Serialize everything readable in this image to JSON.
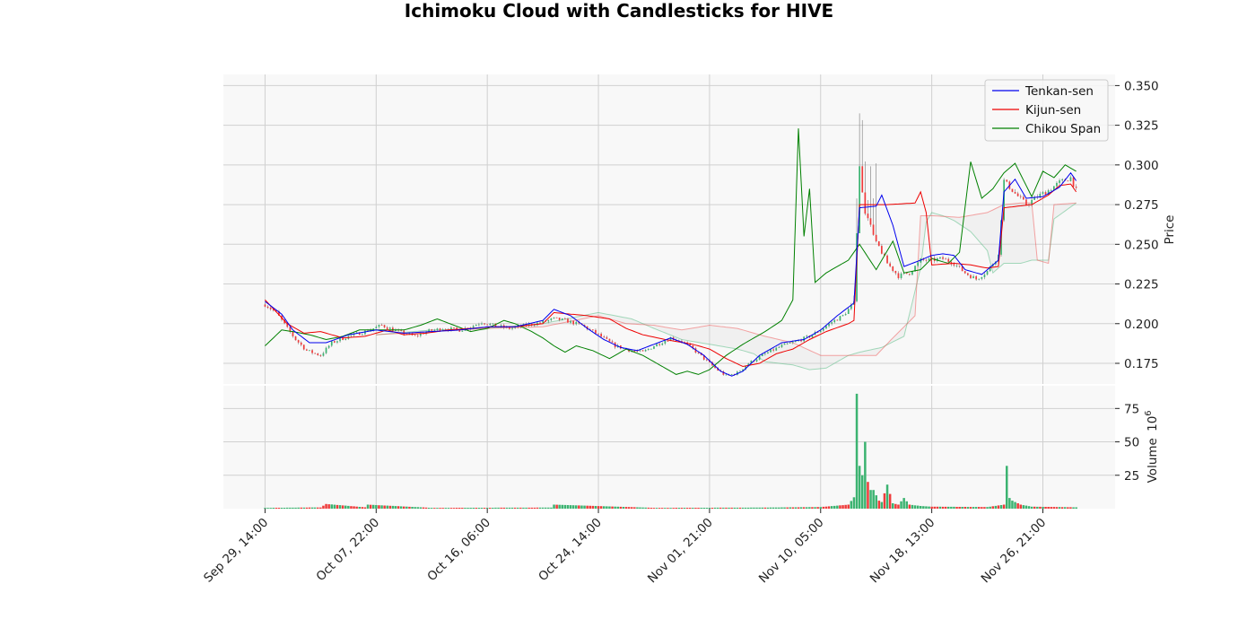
{
  "chart_data": {
    "type": "line",
    "title": "Ichimoku Cloud with Candlesticks for HIVE",
    "price_panel": {
      "ylabel": "Price",
      "ylim": [
        0.162,
        0.357
      ],
      "yticks": [
        0.175,
        0.2,
        0.225,
        0.25,
        0.275,
        0.3,
        0.325,
        0.35
      ],
      "ytick_labels": [
        "0.175",
        "0.200",
        "0.225",
        "0.250",
        "0.275",
        "0.300",
        "0.325",
        "0.350"
      ]
    },
    "volume_panel": {
      "ylabel": "Volume",
      "ylabel_exponent": "10",
      "ylabel_exponent_power": "6",
      "ylim": [
        0,
        92
      ],
      "yticks": [
        25,
        50,
        75
      ],
      "ytick_labels": [
        "25",
        "50",
        "75"
      ]
    },
    "x_axis": {
      "xlim": [
        -15,
        306
      ],
      "tick_positions": [
        0,
        40,
        80,
        120,
        160,
        200,
        240,
        280
      ],
      "tick_labels": [
        "Sep 29, 14:00",
        "Oct 07, 22:00",
        "Oct 16, 06:00",
        "Oct 24, 14:00",
        "Nov 01, 21:00",
        "Nov 10, 05:00",
        "Nov 18, 13:00",
        "Nov 26, 21:00"
      ],
      "grid": true
    },
    "legend": {
      "placement": "top-right",
      "entries": [
        {
          "label": "Tenkan-sen",
          "color": "#0000ee"
        },
        {
          "label": "Kijun-sen",
          "color": "#ee0000"
        },
        {
          "label": "Chikou Span",
          "color": "#008000"
        }
      ]
    },
    "colors": {
      "up": "#3cb371",
      "down": "#ef3b3b",
      "senkou_a": "#3cb371",
      "senkou_b": "#ef3b3b",
      "panel_bg": "#f8f8f8",
      "grid": "#d0d0d0"
    },
    "price_anchors": [
      [
        0,
        0.212
      ],
      [
        4,
        0.207
      ],
      [
        8,
        0.197
      ],
      [
        11,
        0.19
      ],
      [
        15,
        0.183
      ],
      [
        20,
        0.18
      ],
      [
        24,
        0.188
      ],
      [
        30,
        0.192
      ],
      [
        36,
        0.195
      ],
      [
        42,
        0.199
      ],
      [
        48,
        0.195
      ],
      [
        54,
        0.192
      ],
      [
        58,
        0.195
      ],
      [
        64,
        0.197
      ],
      [
        70,
        0.196
      ],
      [
        74,
        0.198
      ],
      [
        78,
        0.201
      ],
      [
        82,
        0.199
      ],
      [
        88,
        0.197
      ],
      [
        94,
        0.199
      ],
      [
        100,
        0.201
      ],
      [
        104,
        0.203
      ],
      [
        108,
        0.202
      ],
      [
        114,
        0.199
      ],
      [
        120,
        0.193
      ],
      [
        126,
        0.186
      ],
      [
        132,
        0.183
      ],
      [
        136,
        0.182
      ],
      [
        140,
        0.186
      ],
      [
        146,
        0.191
      ],
      [
        150,
        0.189
      ],
      [
        154,
        0.184
      ],
      [
        158,
        0.178
      ],
      [
        162,
        0.172
      ],
      [
        166,
        0.167
      ],
      [
        170,
        0.169
      ],
      [
        174,
        0.175
      ],
      [
        180,
        0.181
      ],
      [
        186,
        0.186
      ],
      [
        190,
        0.188
      ],
      [
        196,
        0.192
      ],
      [
        200,
        0.196
      ],
      [
        204,
        0.201
      ],
      [
        208,
        0.205
      ],
      [
        212,
        0.213
      ],
      [
        214,
        0.298
      ],
      [
        216,
        0.27
      ],
      [
        218,
        0.262
      ],
      [
        220,
        0.252
      ],
      [
        224,
        0.238
      ],
      [
        228,
        0.23
      ],
      [
        232,
        0.232
      ],
      [
        236,
        0.24
      ],
      [
        240,
        0.24
      ],
      [
        244,
        0.241
      ],
      [
        248,
        0.238
      ],
      [
        252,
        0.232
      ],
      [
        256,
        0.228
      ],
      [
        260,
        0.233
      ],
      [
        264,
        0.243
      ],
      [
        266,
        0.29
      ],
      [
        270,
        0.282
      ],
      [
        274,
        0.275
      ],
      [
        278,
        0.28
      ],
      [
        282,
        0.284
      ],
      [
        286,
        0.289
      ],
      [
        290,
        0.292
      ],
      [
        292,
        0.284
      ]
    ],
    "volume_anchors": [
      [
        0,
        0.6
      ],
      [
        20,
        0.9
      ],
      [
        22,
        3.5
      ],
      [
        36,
        1.0
      ],
      [
        37,
        3.0
      ],
      [
        60,
        0.6
      ],
      [
        103,
        0.8
      ],
      [
        104,
        3.0
      ],
      [
        140,
        0.6
      ],
      [
        180,
        0.8
      ],
      [
        200,
        1.2
      ],
      [
        210,
        3.0
      ],
      [
        212,
        8.5
      ],
      [
        213,
        86
      ],
      [
        214,
        32
      ],
      [
        215,
        25
      ],
      [
        216,
        50
      ],
      [
        217,
        20
      ],
      [
        218,
        14
      ],
      [
        219,
        14
      ],
      [
        220,
        10
      ],
      [
        221,
        6
      ],
      [
        222,
        5
      ],
      [
        224,
        18
      ],
      [
        226,
        4
      ],
      [
        228,
        3
      ],
      [
        230,
        8
      ],
      [
        232,
        3
      ],
      [
        236,
        2
      ],
      [
        240,
        1.5
      ],
      [
        260,
        1.2
      ],
      [
        266,
        3.0
      ],
      [
        267,
        32
      ],
      [
        268,
        8
      ],
      [
        269,
        6
      ],
      [
        272,
        3
      ],
      [
        276,
        1.5
      ],
      [
        292,
        1.0
      ]
    ],
    "tenkan_anchors": [
      [
        0,
        0.214
      ],
      [
        6,
        0.206
      ],
      [
        10,
        0.196
      ],
      [
        16,
        0.188
      ],
      [
        22,
        0.188
      ],
      [
        30,
        0.193
      ],
      [
        40,
        0.196
      ],
      [
        50,
        0.194
      ],
      [
        60,
        0.195
      ],
      [
        70,
        0.196
      ],
      [
        80,
        0.198
      ],
      [
        90,
        0.198
      ],
      [
        100,
        0.202
      ],
      [
        104,
        0.209
      ],
      [
        110,
        0.205
      ],
      [
        116,
        0.197
      ],
      [
        122,
        0.19
      ],
      [
        128,
        0.185
      ],
      [
        134,
        0.183
      ],
      [
        140,
        0.187
      ],
      [
        146,
        0.191
      ],
      [
        152,
        0.187
      ],
      [
        158,
        0.18
      ],
      [
        164,
        0.17
      ],
      [
        168,
        0.167
      ],
      [
        172,
        0.17
      ],
      [
        178,
        0.18
      ],
      [
        186,
        0.188
      ],
      [
        194,
        0.19
      ],
      [
        200,
        0.196
      ],
      [
        206,
        0.205
      ],
      [
        212,
        0.213
      ],
      [
        214,
        0.273
      ],
      [
        220,
        0.274
      ],
      [
        222,
        0.281
      ],
      [
        226,
        0.262
      ],
      [
        230,
        0.236
      ],
      [
        236,
        0.24
      ],
      [
        240,
        0.243
      ],
      [
        244,
        0.244
      ],
      [
        248,
        0.243
      ],
      [
        252,
        0.234
      ],
      [
        258,
        0.231
      ],
      [
        264,
        0.24
      ],
      [
        266,
        0.283
      ],
      [
        270,
        0.291
      ],
      [
        274,
        0.279
      ],
      [
        280,
        0.28
      ],
      [
        286,
        0.286
      ],
      [
        290,
        0.295
      ],
      [
        292,
        0.29
      ]
    ],
    "kijun_anchors": [
      [
        0,
        0.215
      ],
      [
        8,
        0.2
      ],
      [
        14,
        0.194
      ],
      [
        20,
        0.195
      ],
      [
        28,
        0.191
      ],
      [
        36,
        0.192
      ],
      [
        44,
        0.196
      ],
      [
        50,
        0.193
      ],
      [
        58,
        0.194
      ],
      [
        66,
        0.196
      ],
      [
        74,
        0.197
      ],
      [
        82,
        0.198
      ],
      [
        90,
        0.198
      ],
      [
        100,
        0.2
      ],
      [
        104,
        0.207
      ],
      [
        116,
        0.205
      ],
      [
        124,
        0.203
      ],
      [
        130,
        0.197
      ],
      [
        136,
        0.193
      ],
      [
        144,
        0.19
      ],
      [
        154,
        0.187
      ],
      [
        160,
        0.184
      ],
      [
        166,
        0.178
      ],
      [
        172,
        0.173
      ],
      [
        178,
        0.175
      ],
      [
        184,
        0.181
      ],
      [
        190,
        0.184
      ],
      [
        196,
        0.19
      ],
      [
        202,
        0.195
      ],
      [
        210,
        0.2
      ],
      [
        212,
        0.202
      ],
      [
        214,
        0.275
      ],
      [
        224,
        0.275
      ],
      [
        234,
        0.276
      ],
      [
        236,
        0.283
      ],
      [
        238,
        0.27
      ],
      [
        240,
        0.237
      ],
      [
        248,
        0.238
      ],
      [
        254,
        0.237
      ],
      [
        260,
        0.235
      ],
      [
        264,
        0.236
      ],
      [
        266,
        0.273
      ],
      [
        276,
        0.275
      ],
      [
        282,
        0.281
      ],
      [
        286,
        0.287
      ],
      [
        290,
        0.288
      ],
      [
        292,
        0.283
      ]
    ],
    "chikou_anchors": [
      [
        0,
        0.186
      ],
      [
        6,
        0.196
      ],
      [
        10,
        0.195
      ],
      [
        16,
        0.193
      ],
      [
        22,
        0.19
      ],
      [
        28,
        0.192
      ],
      [
        34,
        0.196
      ],
      [
        42,
        0.196
      ],
      [
        50,
        0.196
      ],
      [
        56,
        0.199
      ],
      [
        62,
        0.203
      ],
      [
        68,
        0.199
      ],
      [
        74,
        0.195
      ],
      [
        80,
        0.197
      ],
      [
        86,
        0.202
      ],
      [
        90,
        0.2
      ],
      [
        96,
        0.195
      ],
      [
        100,
        0.191
      ],
      [
        104,
        0.186
      ],
      [
        108,
        0.182
      ],
      [
        112,
        0.186
      ],
      [
        118,
        0.183
      ],
      [
        124,
        0.178
      ],
      [
        130,
        0.184
      ],
      [
        136,
        0.18
      ],
      [
        142,
        0.174
      ],
      [
        148,
        0.168
      ],
      [
        152,
        0.17
      ],
      [
        156,
        0.168
      ],
      [
        160,
        0.171
      ],
      [
        166,
        0.18
      ],
      [
        172,
        0.187
      ],
      [
        180,
        0.195
      ],
      [
        186,
        0.202
      ],
      [
        190,
        0.215
      ],
      [
        192,
        0.323
      ],
      [
        194,
        0.255
      ],
      [
        196,
        0.285
      ],
      [
        198,
        0.226
      ],
      [
        202,
        0.232
      ],
      [
        206,
        0.236
      ],
      [
        210,
        0.24
      ],
      [
        214,
        0.25
      ],
      [
        220,
        0.234
      ],
      [
        226,
        0.252
      ],
      [
        230,
        0.232
      ],
      [
        236,
        0.234
      ],
      [
        240,
        0.241
      ],
      [
        246,
        0.238
      ],
      [
        250,
        0.245
      ],
      [
        254,
        0.302
      ],
      [
        258,
        0.279
      ],
      [
        262,
        0.285
      ],
      [
        266,
        0.295
      ],
      [
        270,
        0.301
      ],
      [
        276,
        0.28
      ],
      [
        280,
        0.296
      ],
      [
        284,
        0.292
      ],
      [
        288,
        0.3
      ],
      [
        292,
        0.296
      ]
    ],
    "senkou_a_anchors": [
      [
        40,
        0.193
      ],
      [
        60,
        0.196
      ],
      [
        80,
        0.197
      ],
      [
        100,
        0.2
      ],
      [
        120,
        0.207
      ],
      [
        132,
        0.203
      ],
      [
        140,
        0.197
      ],
      [
        150,
        0.19
      ],
      [
        160,
        0.187
      ],
      [
        170,
        0.184
      ],
      [
        176,
        0.181
      ],
      [
        180,
        0.176
      ],
      [
        190,
        0.174
      ],
      [
        196,
        0.171
      ],
      [
        202,
        0.172
      ],
      [
        210,
        0.18
      ],
      [
        214,
        0.182
      ],
      [
        222,
        0.185
      ],
      [
        230,
        0.192
      ],
      [
        236,
        0.235
      ],
      [
        238,
        0.264
      ],
      [
        240,
        0.27
      ],
      [
        244,
        0.268
      ],
      [
        248,
        0.265
      ],
      [
        254,
        0.258
      ],
      [
        260,
        0.246
      ],
      [
        262,
        0.232
      ],
      [
        266,
        0.238
      ],
      [
        272,
        0.238
      ],
      [
        276,
        0.24
      ],
      [
        280,
        0.24
      ],
      [
        282,
        0.24
      ],
      [
        284,
        0.266
      ],
      [
        292,
        0.276
      ]
    ],
    "senkou_b_anchors": [
      [
        40,
        0.193
      ],
      [
        60,
        0.195
      ],
      [
        80,
        0.197
      ],
      [
        100,
        0.198
      ],
      [
        120,
        0.205
      ],
      [
        130,
        0.2
      ],
      [
        140,
        0.199
      ],
      [
        150,
        0.196
      ],
      [
        160,
        0.199
      ],
      [
        170,
        0.197
      ],
      [
        180,
        0.192
      ],
      [
        190,
        0.188
      ],
      [
        200,
        0.18
      ],
      [
        210,
        0.18
      ],
      [
        220,
        0.18
      ],
      [
        226,
        0.191
      ],
      [
        234,
        0.205
      ],
      [
        236,
        0.268
      ],
      [
        240,
        0.268
      ],
      [
        250,
        0.267
      ],
      [
        260,
        0.27
      ],
      [
        266,
        0.275
      ],
      [
        272,
        0.276
      ],
      [
        276,
        0.276
      ],
      [
        278,
        0.24
      ],
      [
        282,
        0.238
      ],
      [
        284,
        0.275
      ],
      [
        292,
        0.276
      ]
    ],
    "n_bars": 293
  }
}
